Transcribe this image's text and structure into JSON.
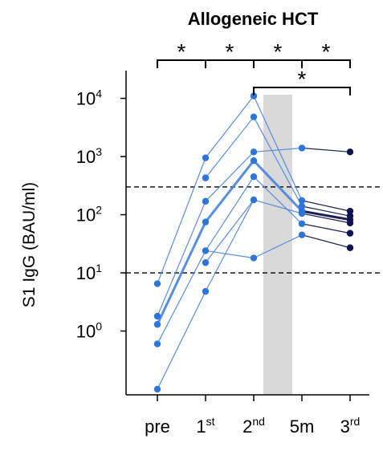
{
  "chart_data": {
    "type": "scatter",
    "title": "Allogeneic HCT",
    "ylabel": "S1 IgG (BAU/ml)",
    "xlabel": "",
    "y_scale": "log",
    "ylim": [
      0.08,
      30000
    ],
    "categories": [
      {
        "base": "pre",
        "sup": ""
      },
      {
        "base": "1",
        "sup": "st"
      },
      {
        "base": "2",
        "sup": "nd"
      },
      {
        "base": "5m",
        "sup": ""
      },
      {
        "base": "3",
        "sup": "rd"
      }
    ],
    "y_ticks": [
      {
        "value": 1,
        "base": "10",
        "exp": "0"
      },
      {
        "value": 10,
        "base": "10",
        "exp": "1"
      },
      {
        "value": 100,
        "base": "10",
        "exp": "2"
      },
      {
        "value": 1000,
        "base": "10",
        "exp": "3"
      },
      {
        "value": 10000,
        "base": "10",
        "exp": "4"
      }
    ],
    "reference_lines": [
      10,
      300
    ],
    "shaded_interval": [
      2.2,
      2.8
    ],
    "significance": [
      {
        "from": 0,
        "to": 1,
        "label": "*",
        "level": 1
      },
      {
        "from": 1,
        "to": 2,
        "label": "*",
        "level": 1
      },
      {
        "from": 2,
        "to": 3,
        "label": "*",
        "level": 1
      },
      {
        "from": 3,
        "to": 4,
        "label": "*",
        "level": 1
      },
      {
        "from": 2,
        "to": 4,
        "label": "*",
        "level": 2
      }
    ],
    "colors": {
      "early": "#2f74d8",
      "line": "#4f88e0",
      "late": "#0d1550",
      "shade": "#d9d9d9",
      "axis": "#000000"
    },
    "points": [
      {
        "x": 0,
        "y": 6.5,
        "period": "early"
      },
      {
        "x": 0,
        "y": 1.8,
        "period": "early"
      },
      {
        "x": 0,
        "y": 1.3,
        "period": "early"
      },
      {
        "x": 0,
        "y": 0.6,
        "period": "early"
      },
      {
        "x": 0,
        "y": 0.1,
        "period": "early"
      },
      {
        "x": 1,
        "y": 950,
        "period": "early"
      },
      {
        "x": 1,
        "y": 430,
        "period": "early"
      },
      {
        "x": 1,
        "y": 170,
        "period": "early"
      },
      {
        "x": 1,
        "y": 75,
        "period": "early"
      },
      {
        "x": 1,
        "y": 24,
        "period": "early"
      },
      {
        "x": 1,
        "y": 15,
        "period": "early"
      },
      {
        "x": 1,
        "y": 4.8,
        "period": "early"
      },
      {
        "x": 2,
        "y": 11000,
        "period": "early"
      },
      {
        "x": 2,
        "y": 4800,
        "period": "early"
      },
      {
        "x": 2,
        "y": 1200,
        "period": "early"
      },
      {
        "x": 2,
        "y": 850,
        "period": "early"
      },
      {
        "x": 2,
        "y": 450,
        "period": "early"
      },
      {
        "x": 2,
        "y": 180,
        "period": "early"
      },
      {
        "x": 2,
        "y": 18,
        "period": "early"
      },
      {
        "x": 3,
        "y": 1400,
        "period": "early"
      },
      {
        "x": 3,
        "y": 175,
        "period": "early"
      },
      {
        "x": 3,
        "y": 140,
        "period": "early"
      },
      {
        "x": 3,
        "y": 115,
        "period": "early"
      },
      {
        "x": 3,
        "y": 105,
        "period": "early"
      },
      {
        "x": 3,
        "y": 70,
        "period": "early"
      },
      {
        "x": 3,
        "y": 45,
        "period": "early"
      },
      {
        "x": 4,
        "y": 1200,
        "period": "late"
      },
      {
        "x": 4,
        "y": 115,
        "period": "late"
      },
      {
        "x": 4,
        "y": 95,
        "period": "late"
      },
      {
        "x": 4,
        "y": 82,
        "period": "late"
      },
      {
        "x": 4,
        "y": 72,
        "period": "late"
      },
      {
        "x": 4,
        "y": 48,
        "period": "late"
      },
      {
        "x": 4,
        "y": 27,
        "period": "late"
      }
    ],
    "lines": [
      {
        "x": [
          0,
          1
        ],
        "y": [
          6.5,
          950
        ],
        "width": 1.2
      },
      {
        "x": [
          0,
          1
        ],
        "y": [
          1.8,
          170
        ],
        "width": 1.2
      },
      {
        "x": [
          0,
          1
        ],
        "y": [
          1.3,
          75
        ],
        "width": 3
      },
      {
        "x": [
          0,
          1
        ],
        "y": [
          0.6,
          24
        ],
        "width": 1.2
      },
      {
        "x": [
          0,
          1
        ],
        "y": [
          0.1,
          4.8
        ],
        "width": 1.2
      },
      {
        "x": [
          1,
          2
        ],
        "y": [
          950,
          11000
        ],
        "width": 1.2
      },
      {
        "x": [
          1,
          2
        ],
        "y": [
          430,
          4800
        ],
        "width": 1.2
      },
      {
        "x": [
          1,
          2
        ],
        "y": [
          170,
          1200
        ],
        "width": 1.2
      },
      {
        "x": [
          1,
          2
        ],
        "y": [
          75,
          850
        ],
        "width": 3
      },
      {
        "x": [
          1,
          2
        ],
        "y": [
          24,
          450
        ],
        "width": 1.2
      },
      {
        "x": [
          1,
          2
        ],
        "y": [
          15,
          180
        ],
        "width": 1.2
      },
      {
        "x": [
          1,
          2
        ],
        "y": [
          24,
          18
        ],
        "width": 1.2
      },
      {
        "x": [
          1,
          2
        ],
        "y": [
          4.8,
          180
        ],
        "width": 1.2
      },
      {
        "x": [
          2,
          3
        ],
        "y": [
          11000,
          175
        ],
        "width": 1.2
      },
      {
        "x": [
          2,
          3
        ],
        "y": [
          4800,
          140
        ],
        "width": 1.2
      },
      {
        "x": [
          2,
          3
        ],
        "y": [
          1200,
          1400
        ],
        "width": 1.2
      },
      {
        "x": [
          2,
          3
        ],
        "y": [
          850,
          115
        ],
        "width": 3
      },
      {
        "x": [
          2,
          3
        ],
        "y": [
          450,
          70
        ],
        "width": 1.2
      },
      {
        "x": [
          2,
          3
        ],
        "y": [
          180,
          105
        ],
        "width": 1.2
      },
      {
        "x": [
          2,
          3
        ],
        "y": [
          18,
          45
        ],
        "width": 1.2
      },
      {
        "x": [
          3,
          4
        ],
        "y": [
          1400,
          1200
        ],
        "width": 1.2
      },
      {
        "x": [
          3,
          4
        ],
        "y": [
          175,
          115
        ],
        "width": 1.2
      },
      {
        "x": [
          3,
          4
        ],
        "y": [
          140,
          95
        ],
        "width": 1.2
      },
      {
        "x": [
          3,
          4
        ],
        "y": [
          115,
          82
        ],
        "width": 3
      },
      {
        "x": [
          3,
          4
        ],
        "y": [
          105,
          72
        ],
        "width": 1.2
      },
      {
        "x": [
          3,
          4
        ],
        "y": [
          70,
          48
        ],
        "width": 1.2
      },
      {
        "x": [
          3,
          4
        ],
        "y": [
          45,
          27
        ],
        "width": 1.2
      }
    ]
  }
}
